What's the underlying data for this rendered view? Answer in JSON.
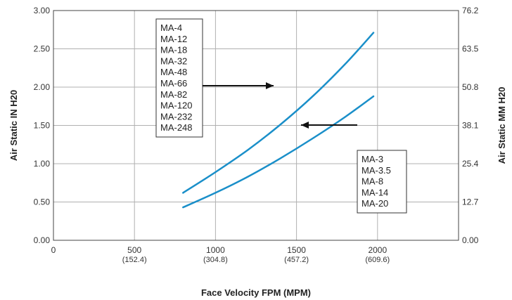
{
  "chart_data": {
    "type": "line",
    "xlabel": "Face Velocity FPM (MPM)",
    "ylabel": "Air Static IN H20",
    "y2label": "Air Static MM H20",
    "xlim": [
      0,
      2500
    ],
    "ylim": [
      0,
      3.0
    ],
    "grid": true,
    "x_ticks": [
      {
        "label": "0",
        "sub": ""
      },
      {
        "label": "500",
        "sub": "(152.4)"
      },
      {
        "label": "1000",
        "sub": "(304.8)"
      },
      {
        "label": "1500",
        "sub": "(457.2)"
      },
      {
        "label": "2000",
        "sub": "(609.6)"
      }
    ],
    "x_tick_values": [
      0,
      500,
      1000,
      1500,
      2000
    ],
    "y_ticks": [
      "0.00",
      "0.50",
      "1.00",
      "1.50",
      "2.00",
      "2.50",
      "3.00"
    ],
    "y_tick_values": [
      0,
      0.5,
      1.0,
      1.5,
      2.0,
      2.5,
      3.0
    ],
    "y2_ticks": [
      "0.00",
      "12.7",
      "25.4",
      "38.1",
      "50.8",
      "63.5",
      "76.2"
    ],
    "series": [
      {
        "x": [
          800,
          1000,
          1200,
          1400,
          1600,
          1800,
          1975
        ],
        "y": [
          0.62,
          0.89,
          1.18,
          1.51,
          1.88,
          2.3,
          2.71
        ]
      },
      {
        "x": [
          800,
          1000,
          1200,
          1400,
          1600,
          1800,
          1975
        ],
        "y": [
          0.43,
          0.62,
          0.83,
          1.07,
          1.33,
          1.61,
          1.88
        ]
      }
    ],
    "annotations": [
      {
        "items": [
          "MA-4",
          "MA-12",
          "MA-18",
          "MA-32",
          "MA-48",
          "MA-66",
          "MA-82",
          "MA-120",
          "MA-232",
          "MA-248"
        ]
      },
      {
        "items": [
          "MA-3",
          "MA-3.5",
          "MA-8",
          "MA-14",
          "MA-20"
        ]
      }
    ],
    "line_color": "#1a8fc9"
  }
}
